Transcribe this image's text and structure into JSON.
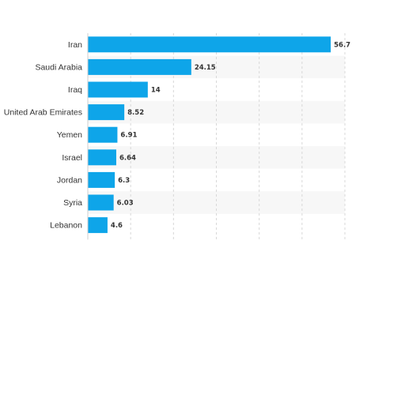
{
  "chart_data": {
    "type": "bar",
    "orientation": "horizontal",
    "categories": [
      "Iran",
      "Saudi Arabia",
      "Iraq",
      "United Arab Emirates",
      "Yemen",
      "Israel",
      "Jordan",
      "Syria",
      "Lebanon"
    ],
    "values": [
      56.7,
      24.15,
      14,
      8.52,
      6.91,
      6.64,
      6.3,
      6.03,
      4.6
    ],
    "value_labels": [
      "56.7",
      "24.15",
      "14",
      "8.52",
      "6.91",
      "6.64",
      "6.3",
      "6.03",
      "4.6"
    ],
    "xlim": [
      0,
      60
    ],
    "grid": true,
    "legend": "none",
    "bar_color": "#0ea5e9",
    "band_color": "#f7f7f7"
  }
}
